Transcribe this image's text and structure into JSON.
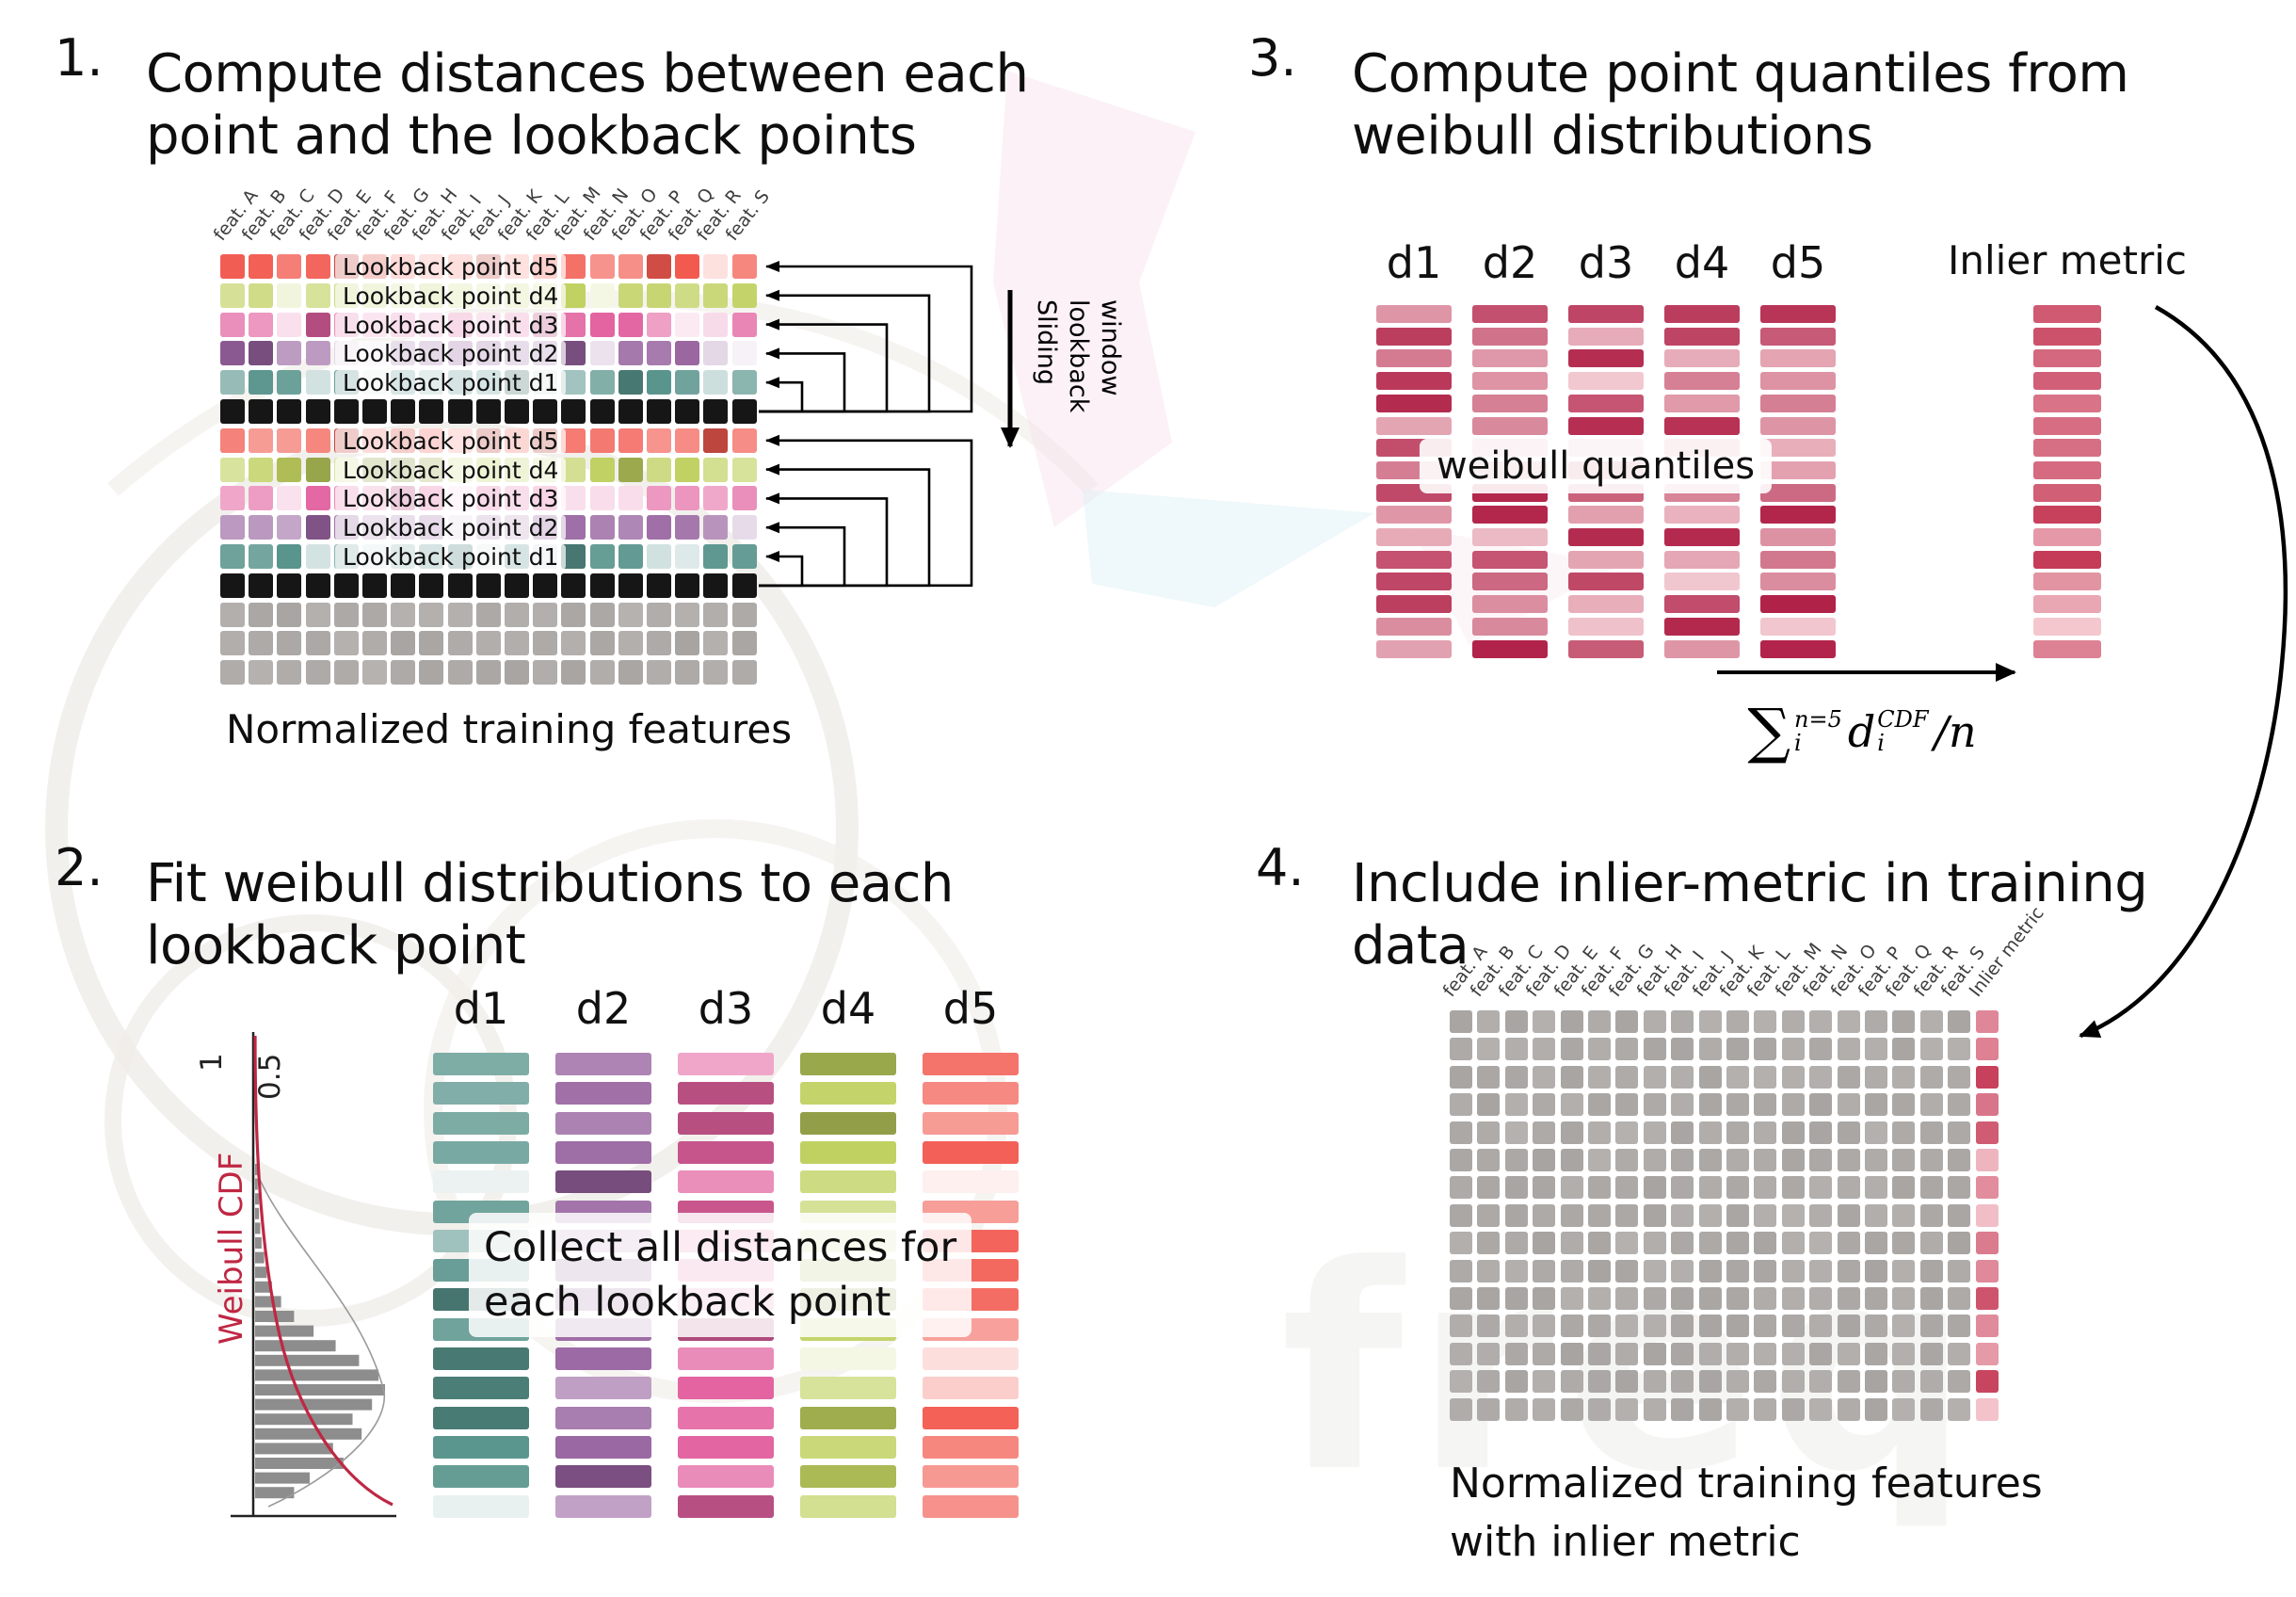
{
  "watermark": {
    "text": "freq"
  },
  "colors": {
    "d1": "#58948c",
    "d2": "#96619e",
    "d3": "#e2619f",
    "d4": "#bfd05e",
    "d5": "#f25a50",
    "black_row": "#161616",
    "gray_cell": "#a8a4a1",
    "quantile_dark": "#ae1b43",
    "quantile_light": "#f5d0d6",
    "inlier_dark": "#c53b58",
    "inlier_light": "#f6ccd3",
    "arrow": "#000000",
    "weibull_curve": "#bf2743",
    "hist_bar": "#8d8d8d"
  },
  "features": [
    "feat. A",
    "feat. B",
    "feat. C",
    "feat. D",
    "feat. E",
    "feat. F",
    "feat. G",
    "feat. H",
    "feat. I",
    "feat. J",
    "feat. K",
    "feat. L",
    "feat. M",
    "feat. N",
    "feat. O",
    "feat. P",
    "feat. Q",
    "feat. R",
    "feat. S"
  ],
  "d_labels": [
    "d1",
    "d2",
    "d3",
    "d4",
    "d5"
  ],
  "panel1": {
    "number": "1.",
    "title_lines": [
      "Compute distances between each",
      "point and the lookback points"
    ],
    "caption": "Normalized training features",
    "sliding_lines": [
      "Sliding",
      "lookback",
      "window"
    ],
    "lookback_labels": [
      "Lookback point d5",
      "Lookback point d4",
      "Lookback point d3",
      "Lookback point d2",
      "Lookback point d1"
    ],
    "row_pattern": [
      "d5",
      "d4",
      "d3",
      "d2",
      "d1",
      "black",
      "d5",
      "d4",
      "d3",
      "d2",
      "d1",
      "black",
      "gray",
      "gray",
      "gray"
    ]
  },
  "panel2": {
    "number": "2.",
    "title_lines": [
      "Fit weibull distributions to each",
      "lookback point"
    ],
    "overlay_lines": [
      "Collect all distances for",
      "each lookback point"
    ],
    "bars_per_column": 16,
    "plot": {
      "tick_labels": [
        "1",
        "0.5"
      ],
      "axis_label": "Weibull CDF",
      "bar_lengths": [
        0.02,
        0.02,
        0.03,
        0.03,
        0.04,
        0.05,
        0.07,
        0.09,
        0.13,
        0.2,
        0.3,
        0.45,
        0.62,
        0.8,
        0.95,
        1.0,
        0.9,
        0.75,
        0.82,
        0.6,
        0.68,
        0.42,
        0.3
      ]
    }
  },
  "panel3": {
    "number": "3.",
    "title_lines": [
      "Compute point quantiles from",
      "weibull distributions"
    ],
    "overlay": "weibull quantiles",
    "inlier_label": "Inlier metric",
    "bars_per_column": 16,
    "formula": {
      "sum": "∑",
      "sum_sup": "n=5",
      "sum_sub": "i",
      "var": "d",
      "var_sup": "CDF",
      "var_sub": "i",
      "tail": "/n"
    }
  },
  "panel4": {
    "number": "4.",
    "title_lines": [
      "Include inlier-metric in training",
      "data"
    ],
    "inlier_header": "Inlier metric",
    "caption_lines": [
      "Normalized training features",
      "with inlier metric"
    ],
    "rows": 15
  }
}
